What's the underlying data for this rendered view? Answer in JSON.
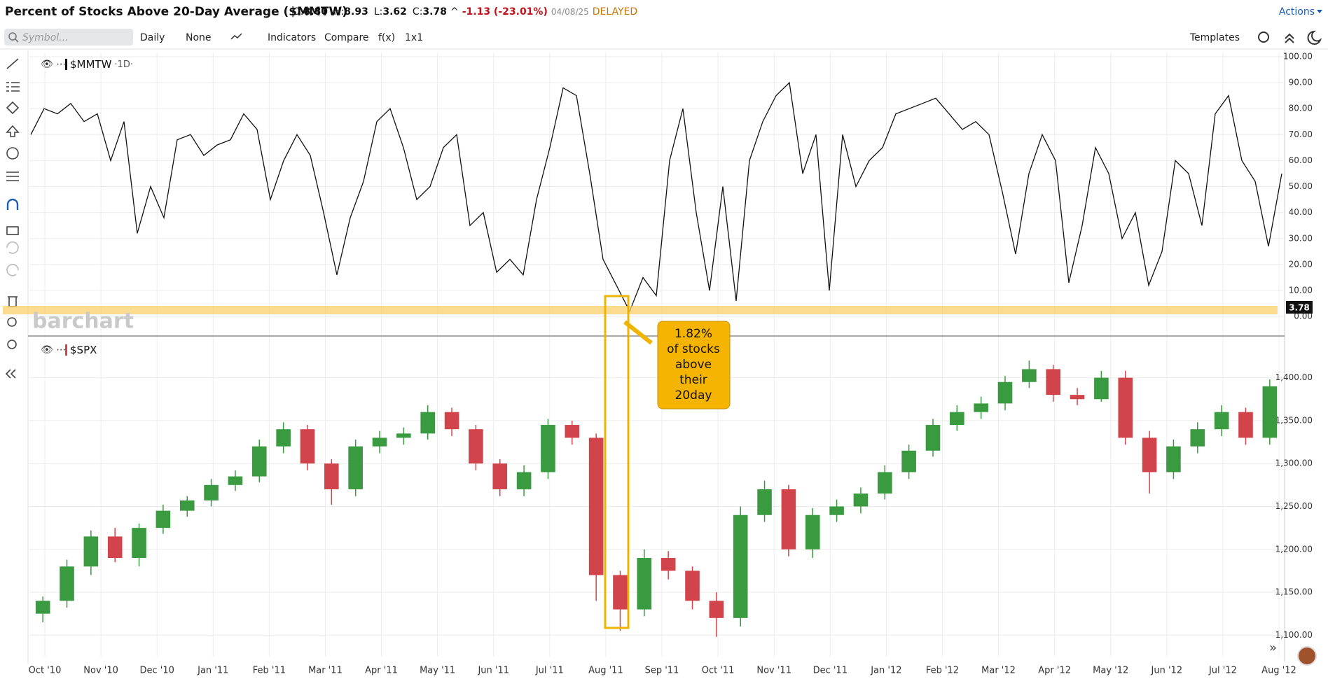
{
  "header": {
    "title": "Percent of Stocks Above 20-Day Average ($MMTW)",
    "quote": [
      {
        "label": "O:",
        "value": "8.80"
      },
      {
        "label": "H:",
        "value": "8.93"
      },
      {
        "label": "L:",
        "value": "3.62"
      },
      {
        "label": "C:",
        "value": "3.78"
      }
    ],
    "arrow": "^",
    "change": "-1.13 (-23.01%)",
    "date": "04/08/25",
    "status": "DELAYED",
    "actions": "Actions"
  },
  "toolbar": {
    "symbol_placeholder": "Symbol...",
    "items": [
      "Daily",
      "None",
      "Indicators",
      "Compare",
      "f(x)",
      "1x1"
    ],
    "templates": "Templates"
  },
  "watermark": "barchart",
  "last_price": "3.78",
  "annotation": {
    "lines": [
      "1.82%",
      "of stocks",
      "above",
      "their",
      "20day"
    ]
  },
  "x_axis": {
    "labels": [
      "Oct '10",
      "Nov '10",
      "Dec '10",
      "Jan '11",
      "Feb '11",
      "Mar '11",
      "Apr '11",
      "May '11",
      "Jun '11",
      "Jul '11",
      "Aug '11",
      "Sep '11",
      "Oct '11",
      "Nov '11",
      "Dec '11",
      "Jan '12",
      "Feb '12",
      "Mar '12",
      "Apr '12",
      "May '12",
      "Jun '12",
      "Jul '12",
      "Aug '12"
    ]
  },
  "charts": [
    {
      "type": "line",
      "name": "$MMTW",
      "interval": "·1D·",
      "color": "#111111",
      "values": [
        70,
        80,
        78,
        82,
        75,
        78,
        60,
        75,
        32,
        50,
        38,
        68,
        70,
        62,
        66,
        68,
        78,
        72,
        45,
        60,
        70,
        62,
        40,
        16,
        38,
        52,
        75,
        80,
        65,
        45,
        50,
        65,
        70,
        35,
        40,
        17,
        22,
        16,
        45,
        65,
        88,
        85,
        55,
        22,
        12,
        2,
        15,
        8,
        60,
        80,
        40,
        10,
        50,
        6,
        60,
        75,
        85,
        90,
        55,
        70,
        10,
        70,
        50,
        60,
        65,
        78,
        80,
        82,
        84,
        78,
        72,
        75,
        70,
        48,
        24,
        55,
        70,
        60,
        13,
        35,
        65,
        55,
        30,
        40,
        12,
        25,
        60,
        55,
        35,
        78,
        85,
        60,
        52,
        27,
        55
      ],
      "ylim": [
        -6.7,
        101.6
      ],
      "yticks": [
        {
          "value": 0,
          "label": "0.00"
        },
        {
          "value": 10,
          "label": "10.00"
        },
        {
          "value": 20,
          "label": "20.00"
        },
        {
          "value": 30,
          "label": "30.00"
        },
        {
          "value": 40,
          "label": "40.00"
        },
        {
          "value": 50,
          "label": "50.00"
        },
        {
          "value": 60,
          "label": "60.00"
        },
        {
          "value": 70,
          "label": "70.00"
        },
        {
          "value": 80,
          "label": "80.00"
        },
        {
          "value": 90,
          "label": "90.00"
        },
        {
          "value": 100,
          "label": "100.00"
        }
      ],
      "grid": true
    },
    {
      "type": "candlestick",
      "name": "$SPX",
      "up_color": "#3a9a3f",
      "down_color": "#d2444b",
      "open": [
        1125,
        1140,
        1180,
        1215,
        1190,
        1225,
        1245,
        1257,
        1275,
        1285,
        1320,
        1340,
        1300,
        1270,
        1320,
        1330,
        1335,
        1360,
        1340,
        1300,
        1270,
        1290,
        1345,
        1330,
        1170,
        1130,
        1190,
        1175,
        1140,
        1120,
        1240,
        1270,
        1200,
        1240,
        1250,
        1265,
        1290,
        1315,
        1345,
        1360,
        1370,
        1395,
        1410,
        1380,
        1375,
        1400,
        1330,
        1290,
        1320,
        1340,
        1360,
        1330
      ],
      "high": [
        1145,
        1188,
        1222,
        1225,
        1230,
        1252,
        1262,
        1282,
        1292,
        1328,
        1348,
        1345,
        1305,
        1328,
        1338,
        1342,
        1368,
        1365,
        1345,
        1305,
        1298,
        1352,
        1350,
        1335,
        1175,
        1200,
        1198,
        1180,
        1150,
        1250,
        1280,
        1275,
        1248,
        1258,
        1272,
        1298,
        1322,
        1352,
        1368,
        1378,
        1402,
        1420,
        1415,
        1388,
        1408,
        1408,
        1338,
        1328,
        1348,
        1368,
        1365,
        1398
      ],
      "low": [
        1115,
        1132,
        1170,
        1185,
        1180,
        1218,
        1238,
        1250,
        1268,
        1278,
        1312,
        1292,
        1252,
        1262,
        1312,
        1322,
        1328,
        1332,
        1292,
        1262,
        1262,
        1282,
        1322,
        1140,
        1105,
        1122,
        1165,
        1130,
        1098,
        1110,
        1232,
        1192,
        1190,
        1232,
        1242,
        1258,
        1282,
        1308,
        1338,
        1352,
        1362,
        1388,
        1372,
        1368,
        1372,
        1322,
        1265,
        1282,
        1312,
        1332,
        1322,
        1322
      ],
      "close": [
        1140,
        1180,
        1215,
        1190,
        1225,
        1245,
        1257,
        1275,
        1285,
        1320,
        1340,
        1300,
        1270,
        1320,
        1330,
        1335,
        1360,
        1340,
        1300,
        1270,
        1290,
        1345,
        1330,
        1170,
        1130,
        1190,
        1175,
        1140,
        1120,
        1240,
        1270,
        1200,
        1240,
        1250,
        1265,
        1290,
        1315,
        1345,
        1360,
        1370,
        1395,
        1410,
        1380,
        1375,
        1400,
        1330,
        1290,
        1320,
        1340,
        1360,
        1330,
        1390
      ],
      "ylim": [
        1075,
        1447
      ],
      "yticks": [
        {
          "value": 1100,
          "label": "1,100.00"
        },
        {
          "value": 1150,
          "label": "1,150.00"
        },
        {
          "value": 1200,
          "label": "1,200.00"
        },
        {
          "value": 1250,
          "label": "1,250.00"
        },
        {
          "value": 1300,
          "label": "1,300.00"
        },
        {
          "value": 1350,
          "label": "1,350.00"
        },
        {
          "value": 1400,
          "label": "1,400.00"
        }
      ],
      "grid": true
    }
  ]
}
